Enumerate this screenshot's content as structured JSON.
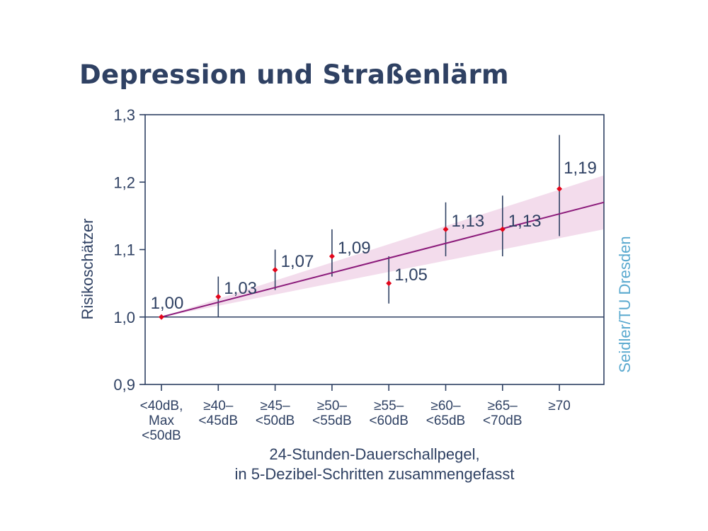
{
  "chart_data": {
    "type": "scatter",
    "title": "Depression und Straßenlärm",
    "ylabel": "Risikoschätzer",
    "xlabel_lines": [
      "24-Stunden-Dauerschallpegel,",
      "in 5-Dezibel-Schritten zusammengefasst"
    ],
    "credit": "Seidler/TU Dresden",
    "ylim": [
      0.9,
      1.3
    ],
    "yticks": [
      0.9,
      1.0,
      1.1,
      1.2,
      1.3
    ],
    "ytick_labels": [
      "0,9",
      "1,0",
      "1,1",
      "1,2",
      "1,3"
    ],
    "categories": [
      [
        "<40dB,",
        "Max",
        "<50dB"
      ],
      [
        "≥40–",
        "<45dB"
      ],
      [
        "≥45–",
        "<50dB"
      ],
      [
        "≥50–",
        "<55dB"
      ],
      [
        "≥55–",
        "<60dB"
      ],
      [
        "≥60–",
        "<65dB"
      ],
      [
        "≥65–",
        "<70dB"
      ],
      [
        "≥70"
      ]
    ],
    "values": [
      1.0,
      1.03,
      1.07,
      1.09,
      1.05,
      1.13,
      1.13,
      1.19
    ],
    "value_labels": [
      "1,00",
      "1,03",
      "1,07",
      "1,09",
      "1,05",
      "1,13",
      "1,13",
      "1,19"
    ],
    "ci_lower": [
      1.0,
      1.0,
      1.04,
      1.06,
      1.02,
      1.09,
      1.09,
      1.12
    ],
    "ci_upper": [
      1.0,
      1.06,
      1.1,
      1.13,
      1.09,
      1.17,
      1.18,
      1.27
    ],
    "trend_line": {
      "start": 1.0,
      "end": 1.17
    },
    "trend_band": {
      "lower_end": 1.13,
      "upper_end": 1.21
    },
    "reference_line": 1.0,
    "colors": {
      "text": "#2f4163",
      "axis": "#2f4163",
      "point": "#e3061b",
      "errorbar": "#2f4163",
      "trend": "#8b1a7a",
      "band": "#f3dcec",
      "credit": "#5aa9cf"
    }
  }
}
